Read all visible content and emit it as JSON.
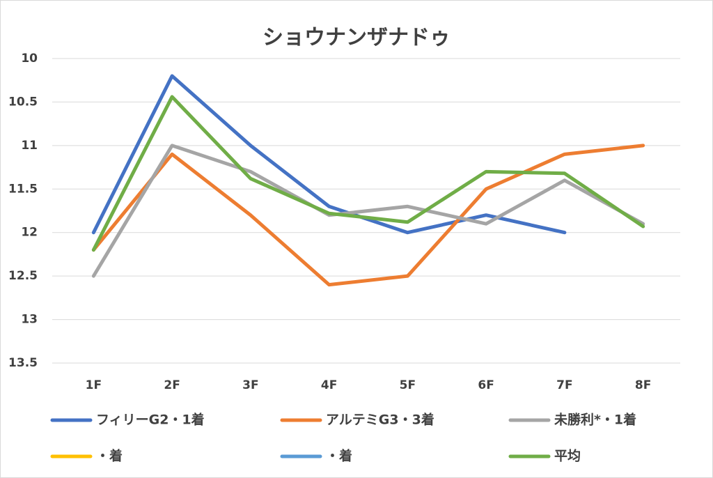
{
  "chart_data": {
    "type": "line",
    "title": "ショウナンザナドゥ",
    "categories": [
      "1F",
      "2F",
      "3F",
      "4F",
      "5F",
      "6F",
      "7F",
      "8F"
    ],
    "series": [
      {
        "name": "フィリーG2・1着",
        "color": "#4472c4",
        "values": [
          12,
          10.2,
          11,
          11.7,
          12,
          11.8,
          12,
          null
        ]
      },
      {
        "name": "アルテミG3・3着",
        "color": "#ed7d31",
        "values": [
          12.2,
          11.1,
          11.8,
          12.6,
          12.5,
          11.5,
          11.1,
          11
        ]
      },
      {
        "name": "未勝利*・1着",
        "color": "#a5a5a5",
        "values": [
          12.5,
          11,
          11.3,
          11.8,
          11.7,
          11.9,
          11.4,
          11.9
        ]
      },
      {
        "name": "・着",
        "color": "#ffc000",
        "values": [
          null,
          null,
          null,
          null,
          null,
          null,
          null,
          null
        ]
      },
      {
        "name": "・着",
        "color": "#5b9bd5",
        "values": [
          null,
          null,
          null,
          null,
          null,
          null,
          null,
          null
        ]
      },
      {
        "name": "平均",
        "color": "#70ad47",
        "values": [
          12.2,
          10.44,
          11.38,
          11.78,
          11.88,
          11.3,
          11.32,
          11.93
        ]
      }
    ],
    "ylim": [
      10,
      13.5
    ],
    "y_reversed": true,
    "yticks": [
      10,
      10.5,
      11,
      11.5,
      12,
      12.5,
      13,
      13.5
    ],
    "grid": true,
    "legend": "bottom"
  }
}
